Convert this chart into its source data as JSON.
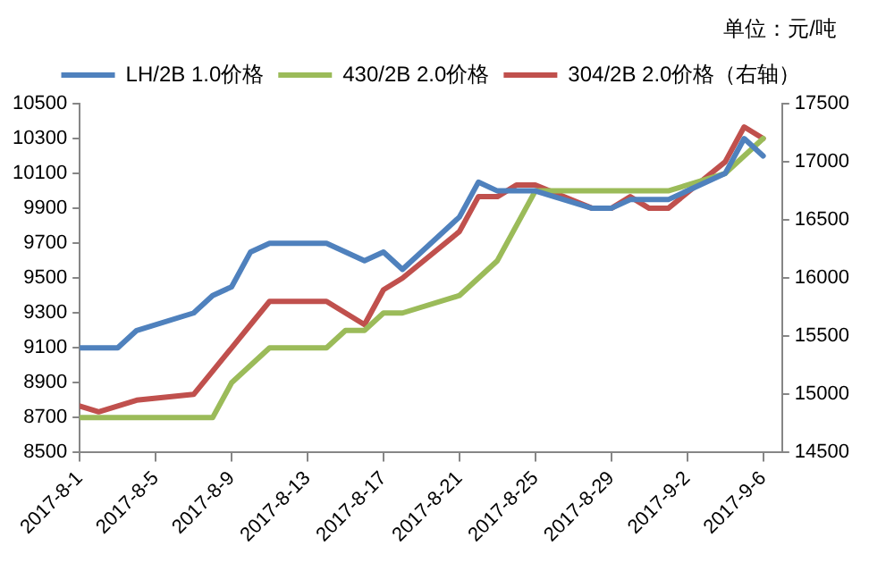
{
  "chart_data": {
    "type": "line",
    "annotations": [
      "单位：元/吨"
    ],
    "x": [
      "2017-08-01",
      "2017-08-02",
      "2017-08-03",
      "2017-08-04",
      "2017-08-07",
      "2017-08-08",
      "2017-08-09",
      "2017-08-10",
      "2017-08-11",
      "2017-08-14",
      "2017-08-15",
      "2017-08-16",
      "2017-08-17",
      "2017-08-18",
      "2017-08-21",
      "2017-08-22",
      "2017-08-23",
      "2017-08-24",
      "2017-08-25",
      "2017-08-28",
      "2017-08-29",
      "2017-08-30",
      "2017-08-31",
      "2017-09-01",
      "2017-09-04",
      "2017-09-05",
      "2017-09-06"
    ],
    "series": [
      {
        "name": "LH/2B 1.0价格",
        "color": "#4f81bd",
        "values": [
          9100,
          9100,
          9100,
          9200,
          9300,
          9400,
          9450,
          9650,
          9700,
          9700,
          9650,
          9600,
          9650,
          9550,
          9850,
          10050,
          10000,
          10000,
          10000,
          9900,
          9900,
          9950,
          9950,
          9950,
          10100,
          10300,
          10200
        ]
      },
      {
        "name": "430/2B 2.0价格",
        "color": "#9bbb59",
        "values": [
          8700,
          8700,
          8700,
          8700,
          8700,
          8700,
          8900,
          9000,
          9100,
          9100,
          9200,
          9200,
          9300,
          9300,
          9400,
          9500,
          9600,
          9800,
          10000,
          10000,
          10000,
          10000,
          10000,
          10000,
          10100,
          10200,
          10300
        ]
      },
      {
        "name": "304/2B 2.0价格（右轴）",
        "color": "#c0504d",
        "axis": "y2",
        "values": [
          14900,
          14850,
          14900,
          14950,
          15000,
          15200,
          15400,
          15600,
          15800,
          15800,
          15700,
          15600,
          15900,
          16000,
          16400,
          16700,
          16700,
          16800,
          16800,
          16600,
          16600,
          16700,
          16600,
          16600,
          17000,
          17300,
          17200
        ]
      }
    ],
    "xlim": [
      "2017-08-01",
      "2017-09-07"
    ],
    "xticks": [
      {
        "value": "2017-08-01",
        "label": "2017-8-1"
      },
      {
        "value": "2017-08-05",
        "label": "2017-8-5"
      },
      {
        "value": "2017-08-09",
        "label": "2017-8-9"
      },
      {
        "value": "2017-08-13",
        "label": "2017-8-13"
      },
      {
        "value": "2017-08-17",
        "label": "2017-8-17"
      },
      {
        "value": "2017-08-21",
        "label": "2017-8-21"
      },
      {
        "value": "2017-08-25",
        "label": "2017-8-25"
      },
      {
        "value": "2017-08-29",
        "label": "2017-8-29"
      },
      {
        "value": "2017-09-02",
        "label": "2017-9-2"
      },
      {
        "value": "2017-09-06",
        "label": "2017-9-6"
      }
    ],
    "ylim": [
      8500,
      10500
    ],
    "yticks": [
      8500,
      8700,
      8900,
      9100,
      9300,
      9500,
      9700,
      9900,
      10100,
      10300,
      10500
    ],
    "y2lim": [
      14500,
      17500
    ],
    "y2ticks": [
      14500,
      15000,
      15500,
      16000,
      16500,
      17000,
      17500
    ],
    "grid": false,
    "legend": "top",
    "marker": "none",
    "line_style": "solid"
  }
}
